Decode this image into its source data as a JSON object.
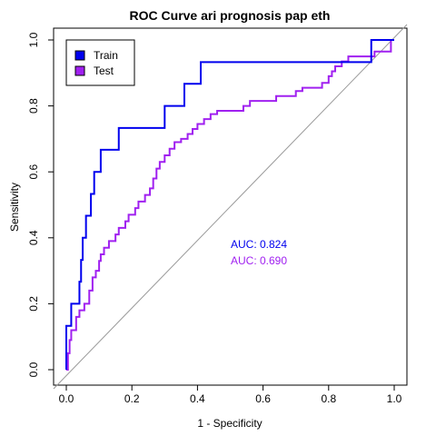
{
  "chart_data": {
    "type": "line",
    "title": "ROC Curve ari prognosis pap eth",
    "xlabel": "1 - Specificity",
    "ylabel": "Sensitivity",
    "xlim": [
      0,
      1
    ],
    "ylim": [
      0,
      1
    ],
    "x_ticks": [
      "0.0",
      "0.2",
      "0.4",
      "0.6",
      "0.8",
      "1.0"
    ],
    "y_ticks": [
      "0.0",
      "0.2",
      "0.4",
      "0.6",
      "0.8",
      "1.0"
    ],
    "grid": false,
    "legend_position": "top-left",
    "diagonal_reference": true,
    "series": [
      {
        "name": "Train",
        "color": "#0000EE",
        "auc_label": "AUC: 0.824",
        "points": [
          [
            0.0,
            0.0
          ],
          [
            0.0,
            0.133
          ],
          [
            0.015,
            0.133
          ],
          [
            0.015,
            0.2
          ],
          [
            0.04,
            0.2
          ],
          [
            0.04,
            0.267
          ],
          [
            0.045,
            0.267
          ],
          [
            0.045,
            0.333
          ],
          [
            0.05,
            0.333
          ],
          [
            0.05,
            0.4
          ],
          [
            0.06,
            0.4
          ],
          [
            0.06,
            0.467
          ],
          [
            0.075,
            0.467
          ],
          [
            0.075,
            0.533
          ],
          [
            0.085,
            0.533
          ],
          [
            0.085,
            0.6
          ],
          [
            0.105,
            0.6
          ],
          [
            0.105,
            0.667
          ],
          [
            0.16,
            0.667
          ],
          [
            0.16,
            0.733
          ],
          [
            0.3,
            0.733
          ],
          [
            0.3,
            0.8
          ],
          [
            0.36,
            0.8
          ],
          [
            0.36,
            0.867
          ],
          [
            0.41,
            0.867
          ],
          [
            0.41,
            0.933
          ],
          [
            0.93,
            0.933
          ],
          [
            0.93,
            1.0
          ],
          [
            1.0,
            1.0
          ]
        ]
      },
      {
        "name": "Test",
        "color": "#A020F0",
        "auc_label": "AUC: 0.690",
        "points": [
          [
            0.0,
            0.0
          ],
          [
            0.005,
            0.0
          ],
          [
            0.005,
            0.05
          ],
          [
            0.01,
            0.05
          ],
          [
            0.01,
            0.09
          ],
          [
            0.015,
            0.09
          ],
          [
            0.015,
            0.12
          ],
          [
            0.03,
            0.12
          ],
          [
            0.03,
            0.16
          ],
          [
            0.04,
            0.16
          ],
          [
            0.04,
            0.18
          ],
          [
            0.055,
            0.18
          ],
          [
            0.055,
            0.2
          ],
          [
            0.07,
            0.2
          ],
          [
            0.07,
            0.24
          ],
          [
            0.08,
            0.24
          ],
          [
            0.08,
            0.28
          ],
          [
            0.09,
            0.28
          ],
          [
            0.09,
            0.3
          ],
          [
            0.1,
            0.3
          ],
          [
            0.1,
            0.33
          ],
          [
            0.105,
            0.33
          ],
          [
            0.105,
            0.35
          ],
          [
            0.115,
            0.35
          ],
          [
            0.115,
            0.37
          ],
          [
            0.13,
            0.37
          ],
          [
            0.13,
            0.39
          ],
          [
            0.15,
            0.39
          ],
          [
            0.15,
            0.41
          ],
          [
            0.16,
            0.41
          ],
          [
            0.16,
            0.43
          ],
          [
            0.18,
            0.43
          ],
          [
            0.18,
            0.45
          ],
          [
            0.19,
            0.45
          ],
          [
            0.19,
            0.47
          ],
          [
            0.21,
            0.47
          ],
          [
            0.21,
            0.49
          ],
          [
            0.22,
            0.49
          ],
          [
            0.22,
            0.51
          ],
          [
            0.24,
            0.51
          ],
          [
            0.24,
            0.53
          ],
          [
            0.255,
            0.53
          ],
          [
            0.255,
            0.55
          ],
          [
            0.265,
            0.55
          ],
          [
            0.265,
            0.58
          ],
          [
            0.275,
            0.58
          ],
          [
            0.275,
            0.61
          ],
          [
            0.285,
            0.61
          ],
          [
            0.285,
            0.63
          ],
          [
            0.3,
            0.63
          ],
          [
            0.3,
            0.65
          ],
          [
            0.315,
            0.65
          ],
          [
            0.315,
            0.67
          ],
          [
            0.33,
            0.67
          ],
          [
            0.33,
            0.69
          ],
          [
            0.35,
            0.69
          ],
          [
            0.35,
            0.7
          ],
          [
            0.37,
            0.7
          ],
          [
            0.37,
            0.715
          ],
          [
            0.385,
            0.715
          ],
          [
            0.385,
            0.73
          ],
          [
            0.4,
            0.73
          ],
          [
            0.4,
            0.745
          ],
          [
            0.42,
            0.745
          ],
          [
            0.42,
            0.76
          ],
          [
            0.44,
            0.76
          ],
          [
            0.44,
            0.775
          ],
          [
            0.46,
            0.775
          ],
          [
            0.46,
            0.785
          ],
          [
            0.54,
            0.785
          ],
          [
            0.54,
            0.8
          ],
          [
            0.56,
            0.8
          ],
          [
            0.56,
            0.815
          ],
          [
            0.64,
            0.815
          ],
          [
            0.64,
            0.83
          ],
          [
            0.7,
            0.83
          ],
          [
            0.7,
            0.845
          ],
          [
            0.72,
            0.845
          ],
          [
            0.72,
            0.855
          ],
          [
            0.78,
            0.855
          ],
          [
            0.78,
            0.87
          ],
          [
            0.8,
            0.87
          ],
          [
            0.8,
            0.89
          ],
          [
            0.81,
            0.89
          ],
          [
            0.81,
            0.905
          ],
          [
            0.82,
            0.905
          ],
          [
            0.82,
            0.92
          ],
          [
            0.84,
            0.92
          ],
          [
            0.84,
            0.935
          ],
          [
            0.86,
            0.935
          ],
          [
            0.86,
            0.95
          ],
          [
            0.94,
            0.95
          ],
          [
            0.94,
            0.965
          ],
          [
            0.99,
            0.965
          ],
          [
            0.99,
            1.0
          ],
          [
            1.0,
            1.0
          ]
        ]
      }
    ]
  }
}
